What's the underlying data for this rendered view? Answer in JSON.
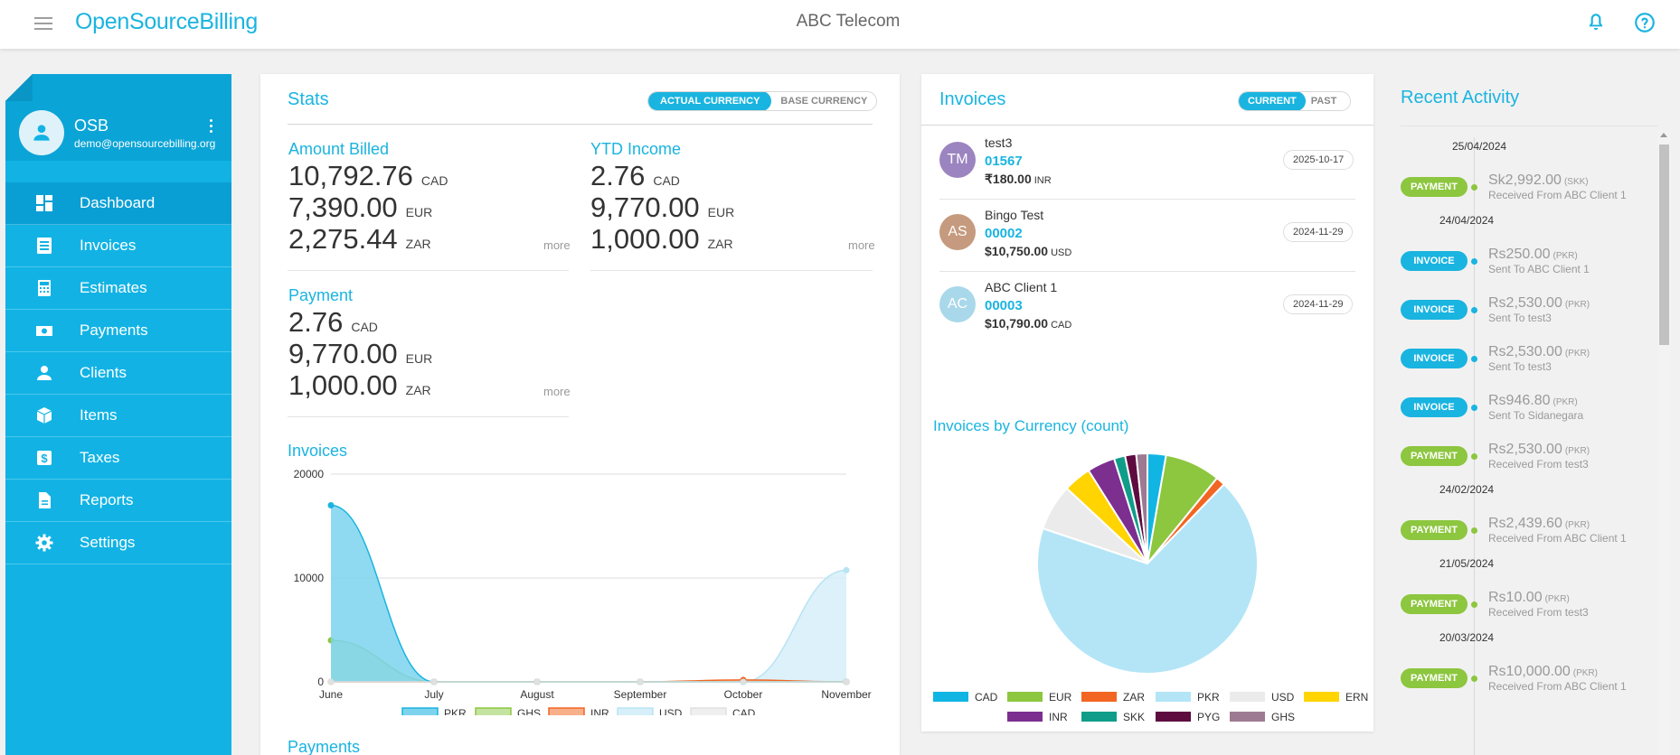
{
  "app": {
    "logo": "OpenSourceBilling",
    "company": "ABC Telecom"
  },
  "topbar": {
    "menu_icon": "hamburger-icon",
    "bell_icon": "bell-icon",
    "help_icon": "help-icon"
  },
  "user": {
    "name": "OSB",
    "email": "demo@opensourcebilling.org"
  },
  "nav": [
    {
      "label": "Dashboard",
      "icon": "dashboard-icon",
      "active": true
    },
    {
      "label": "Invoices",
      "icon": "invoice-icon"
    },
    {
      "label": "Estimates",
      "icon": "calculator-icon"
    },
    {
      "label": "Payments",
      "icon": "money-icon"
    },
    {
      "label": "Clients",
      "icon": "person-icon"
    },
    {
      "label": "Items",
      "icon": "cube-icon"
    },
    {
      "label": "Taxes",
      "icon": "dollar-icon"
    },
    {
      "label": "Reports",
      "icon": "report-icon"
    },
    {
      "label": "Settings",
      "icon": "gear-icon"
    }
  ],
  "stats": {
    "title": "Stats",
    "toggle_on": "ACTUAL CURRENCY",
    "toggle_off": "BASE CURRENCY",
    "more": "more",
    "amount_billed": {
      "label": "Amount Billed",
      "rows": [
        {
          "value": "10,792.76",
          "currency": "CAD"
        },
        {
          "value": "7,390.00",
          "currency": "EUR"
        },
        {
          "value": "2,275.44",
          "currency": "ZAR"
        }
      ]
    },
    "ytd_income": {
      "label": "YTD Income",
      "rows": [
        {
          "value": "2.76",
          "currency": "CAD"
        },
        {
          "value": "9,770.00",
          "currency": "EUR"
        },
        {
          "value": "1,000.00",
          "currency": "ZAR"
        }
      ]
    },
    "payment": {
      "label": "Payment",
      "rows": [
        {
          "value": "2.76",
          "currency": "CAD"
        },
        {
          "value": "9,770.00",
          "currency": "EUR"
        },
        {
          "value": "1,000.00",
          "currency": "ZAR"
        }
      ]
    }
  },
  "payments_heading": "Payments",
  "invoices": {
    "title": "Invoices",
    "toggle_on": "CURRENT",
    "toggle_off": "PAST",
    "items": [
      {
        "initials": "TM",
        "name": "test3",
        "number": "01567",
        "amount": "₹180.00",
        "currency": "INR",
        "date": "2025-10-17",
        "color": "#9b84bf"
      },
      {
        "initials": "AS",
        "name": "Bingo Test",
        "number": "00002",
        "amount": "$10,750.00",
        "currency": "USD",
        "date": "2024-11-29",
        "color": "#c59a7e"
      },
      {
        "initials": "AC",
        "name": "ABC Client 1",
        "number": "00003",
        "amount": "$10,790.00",
        "currency": "CAD",
        "date": "2024-11-29",
        "color": "#a9d8ea"
      }
    ]
  },
  "activity": {
    "title": "Recent Activity",
    "entries": [
      {
        "date": "25/04/2024"
      },
      {
        "type": "PAYMENT",
        "amount": "Sk2,992.00",
        "cur": "(SKK)",
        "desc": "Received From ABC Client 1"
      },
      {
        "date": "24/04/2024"
      },
      {
        "type": "INVOICE",
        "amount": "Rs250.00",
        "cur": "(PKR)",
        "desc": "Sent To ABC Client 1"
      },
      {
        "type": "INVOICE",
        "amount": "Rs2,530.00",
        "cur": "(PKR)",
        "desc": "Sent To test3"
      },
      {
        "type": "INVOICE",
        "amount": "Rs2,530.00",
        "cur": "(PKR)",
        "desc": "Sent To test3"
      },
      {
        "type": "INVOICE",
        "amount": "Rs946.80",
        "cur": "(PKR)",
        "desc": "Sent To Sidanegara"
      },
      {
        "type": "PAYMENT",
        "amount": "Rs2,530.00",
        "cur": "(PKR)",
        "desc": "Received From test3"
      },
      {
        "date": "24/02/2024"
      },
      {
        "type": "PAYMENT",
        "amount": "Rs2,439.60",
        "cur": "(PKR)",
        "desc": "Received From ABC Client 1"
      },
      {
        "date": "21/05/2024"
      },
      {
        "type": "PAYMENT",
        "amount": "Rs10.00",
        "cur": "(PKR)",
        "desc": "Received From test3"
      },
      {
        "date": "20/03/2024"
      },
      {
        "type": "PAYMENT",
        "amount": "Rs10,000.00",
        "cur": "(PKR)",
        "desc": "Received From ABC Client 1"
      }
    ],
    "colors": {
      "PAYMENT": "#8dc63f",
      "INVOICE": "#1ab4e0"
    }
  },
  "chart_data": [
    {
      "type": "area",
      "title": "Invoices",
      "categories": [
        "June",
        "July",
        "August",
        "September",
        "October",
        "November"
      ],
      "ylim": [
        0,
        20000
      ],
      "yticks": [
        0,
        10000,
        20000
      ],
      "grid": true,
      "legend_position": "bottom",
      "series": [
        {
          "name": "PKR",
          "values": [
            17000,
            0,
            0,
            0,
            0,
            0
          ],
          "color": "#1ab4e0",
          "fill": "#7dd3ee"
        },
        {
          "name": "GHS",
          "values": [
            4000,
            0,
            0,
            0,
            0,
            0
          ],
          "color": "#8dc63f",
          "fill": "#c5e3a0"
        },
        {
          "name": "INR",
          "values": [
            0,
            0,
            0,
            0,
            180,
            0
          ],
          "color": "#f26522",
          "fill": "#f8b08a"
        },
        {
          "name": "USD",
          "values": [
            0,
            0,
            0,
            0,
            0,
            10750
          ],
          "color": "#b8e3f3",
          "fill": "#d6eff9"
        },
        {
          "name": "CAD",
          "values": [
            0,
            0,
            0,
            0,
            0,
            0
          ],
          "color": "#e0e0e0",
          "fill": "#efefef"
        }
      ]
    },
    {
      "type": "pie",
      "title": "Invoices by Currency (count)",
      "legend_position": "bottom",
      "slices": [
        {
          "label": "CAD",
          "value": 2,
          "color": "#11b5e4"
        },
        {
          "label": "EUR",
          "value": 6,
          "color": "#8dc63f"
        },
        {
          "label": "ZAR",
          "value": 1,
          "color": "#f26522"
        },
        {
          "label": "PKR",
          "value": 50,
          "color": "#b3e5f7"
        },
        {
          "label": "USD",
          "value": 5,
          "color": "#ebebeb"
        },
        {
          "label": "ERN",
          "value": 3,
          "color": "#ffd400"
        },
        {
          "label": "INR",
          "value": 3,
          "color": "#7c2f8f"
        },
        {
          "label": "SKK",
          "value": 1.2,
          "color": "#0f9d8a"
        },
        {
          "label": "PYG",
          "value": 1.2,
          "color": "#5e0b3f"
        },
        {
          "label": "GHS",
          "value": 1.2,
          "color": "#9e7a92"
        }
      ]
    }
  ]
}
